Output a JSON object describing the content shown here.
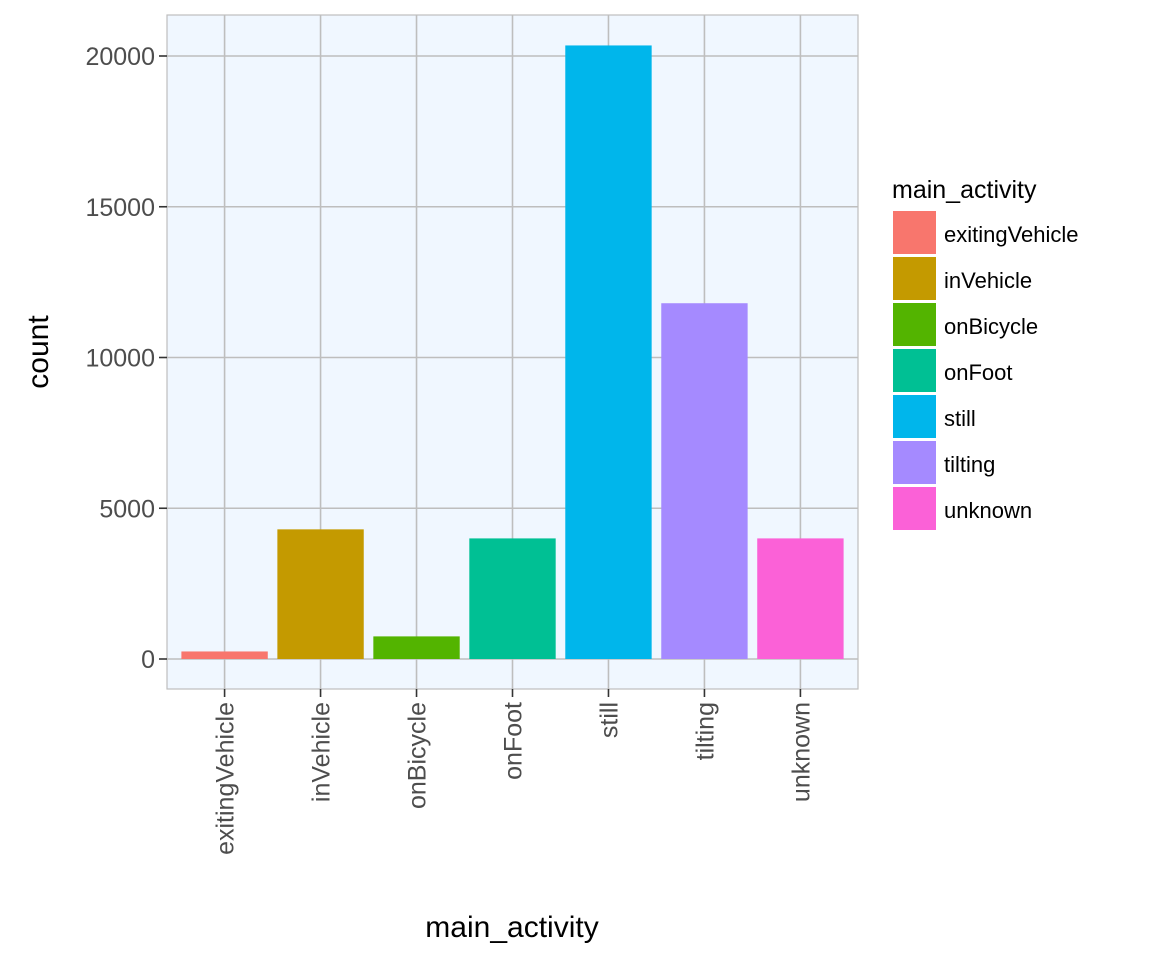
{
  "chart_data": {
    "type": "bar",
    "xlabel": "main_activity",
    "ylabel": "count",
    "categories": [
      "exitingVehicle",
      "inVehicle",
      "onBicycle",
      "onFoot",
      "still",
      "tilting",
      "unknown"
    ],
    "values": [
      250,
      4300,
      750,
      4000,
      20350,
      11800,
      4000
    ],
    "colors": [
      "#F8766D",
      "#C49A00",
      "#53B400",
      "#00C094",
      "#00B6EB",
      "#A58AFF",
      "#FB61D7"
    ],
    "ylim": [
      -1000,
      21400
    ],
    "y_ticks": [
      0,
      5000,
      10000,
      15000,
      20000
    ],
    "y_tick_labels": [
      "0",
      "5000",
      "10000",
      "15000",
      "20000"
    ],
    "grid": true,
    "legend": {
      "title": "main_activity",
      "placement": "right",
      "items": [
        "exitingVehicle",
        "inVehicle",
        "onBicycle",
        "onFoot",
        "still",
        "tilting",
        "unknown"
      ]
    },
    "panel_background": "#F0F7FF",
    "grid_color": "#BEBEBE"
  }
}
